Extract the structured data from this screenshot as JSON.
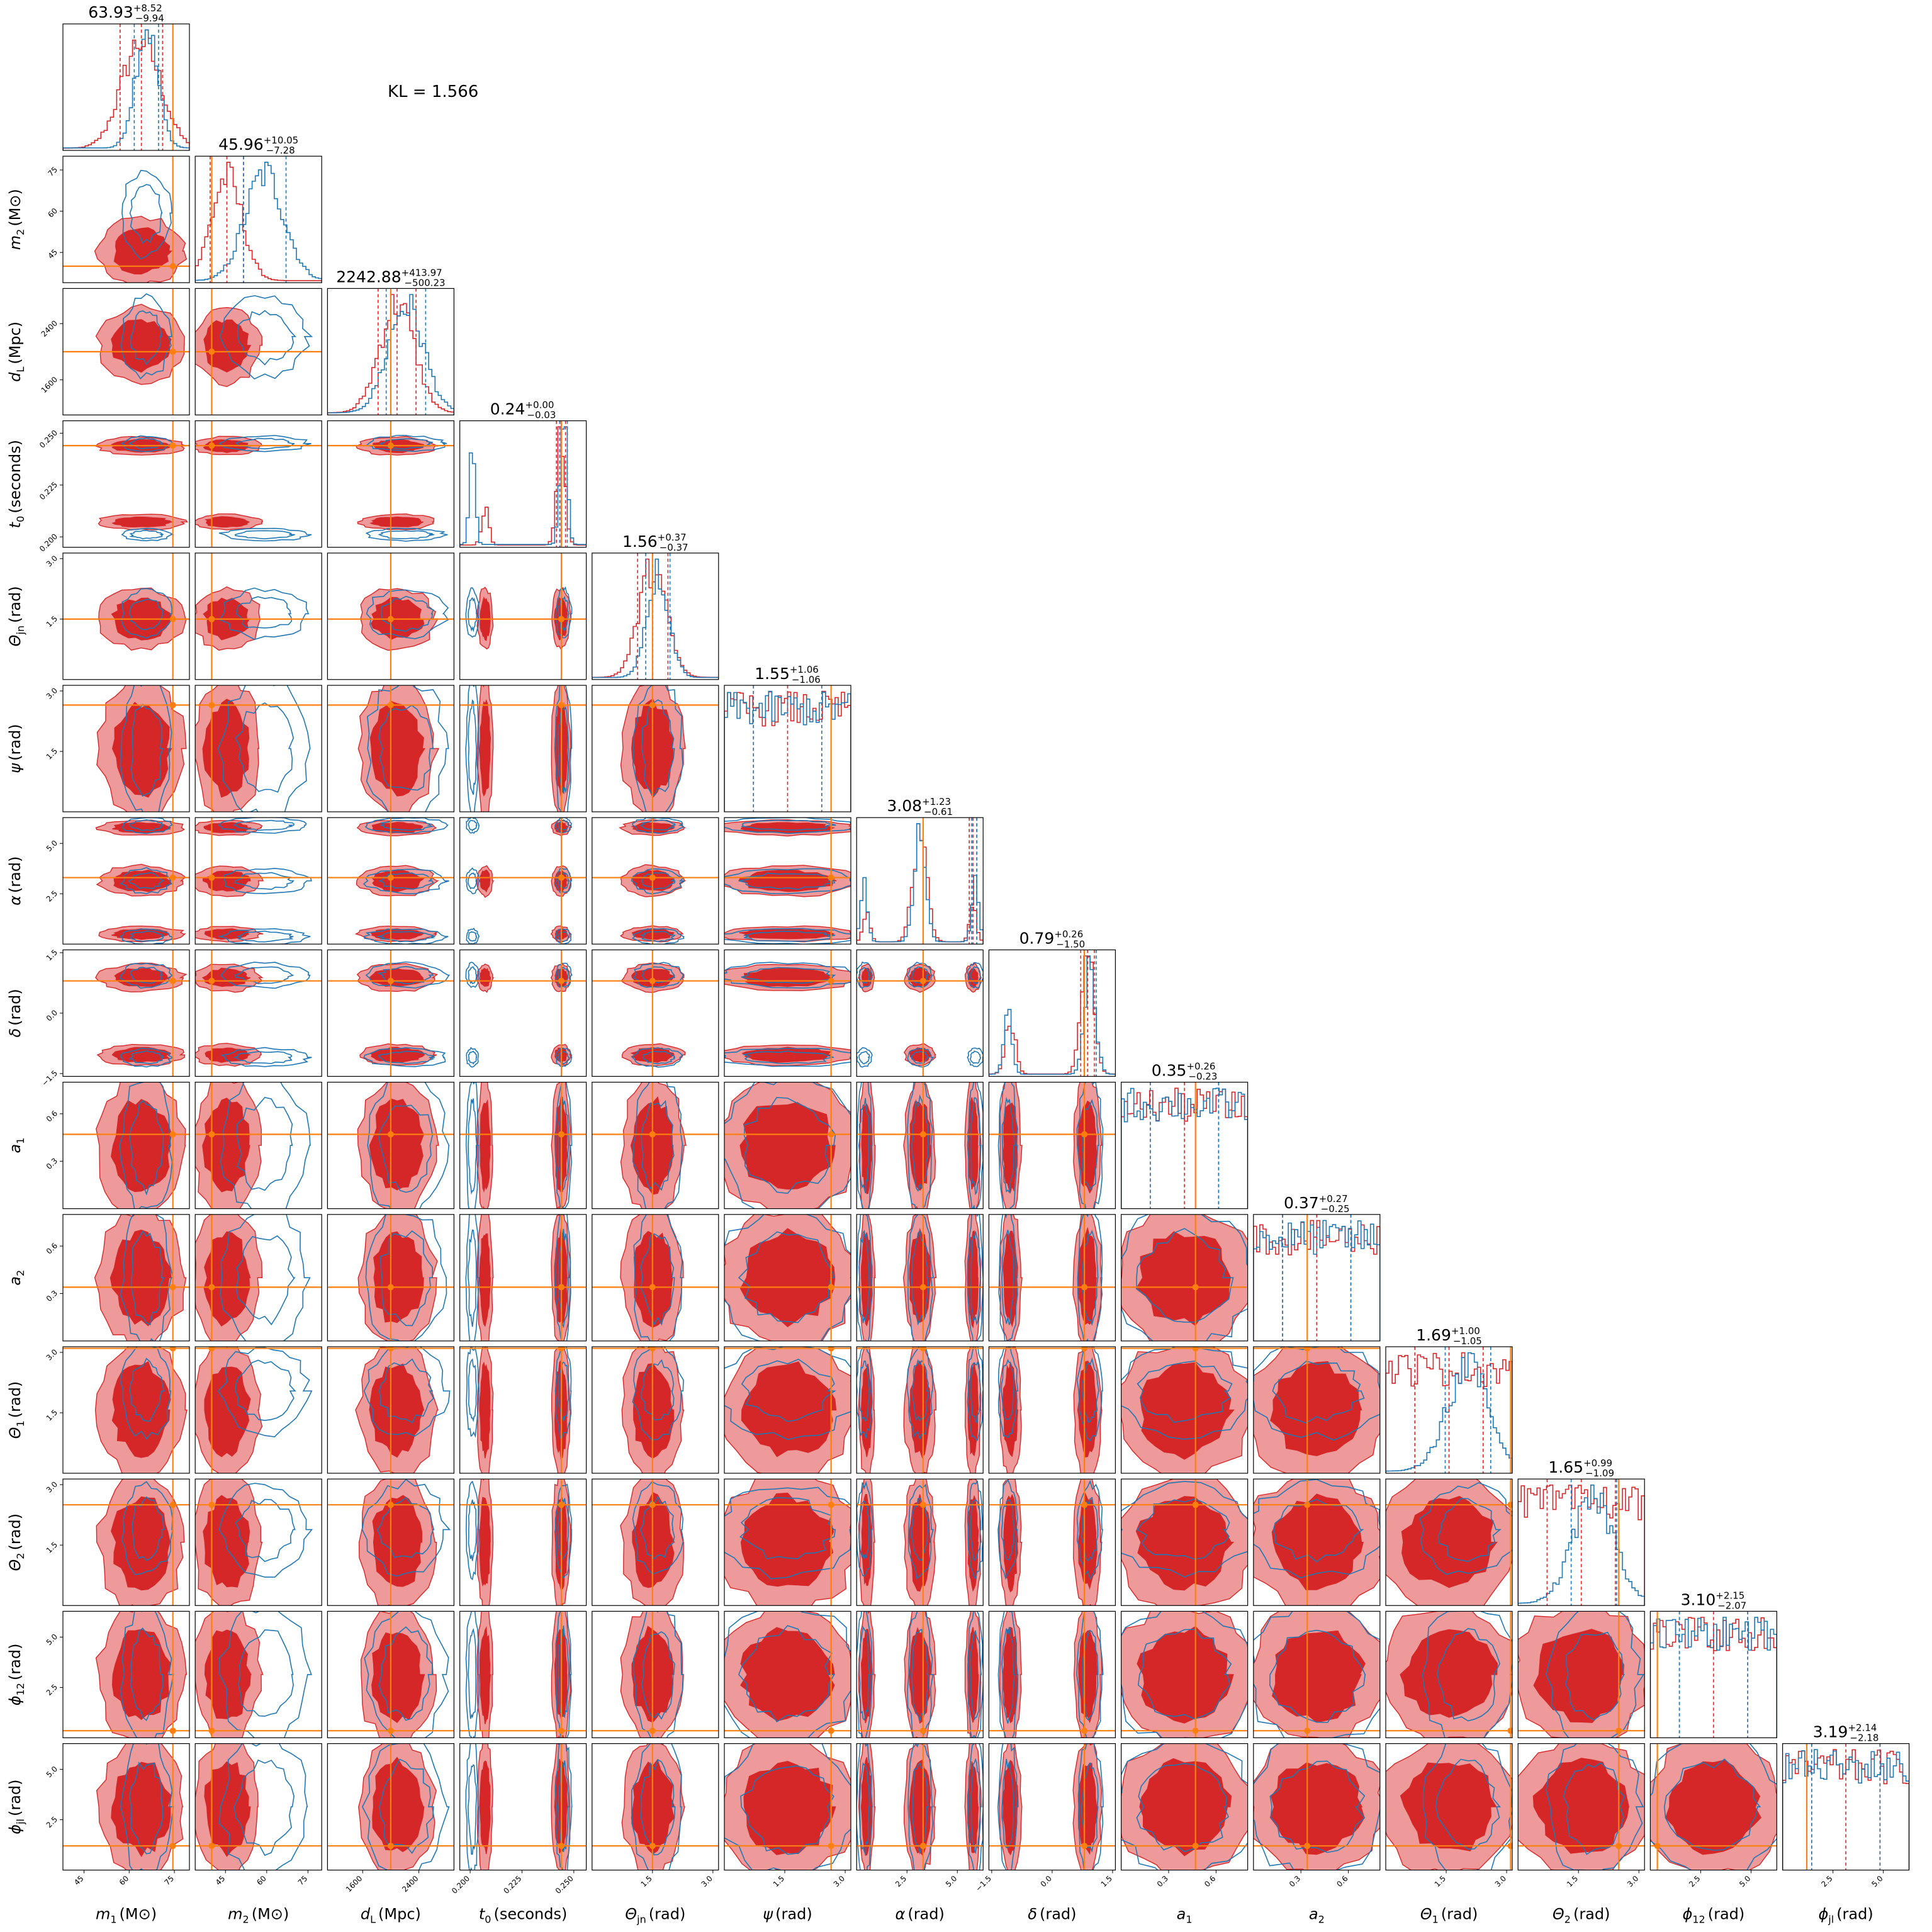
{
  "chart_data": {
    "type": "corner",
    "annotation": "KL = 1.566",
    "colors": {
      "red": "#d62728",
      "red_light": "#ee9a9b",
      "blue": "#1f77b4",
      "truth": "#ff7f0e"
    },
    "parameters": [
      {
        "label": "m1 (Msun)",
        "label_main": "m",
        "label_sub": "1",
        "label_unit": "(M⊙)",
        "title_value": "63.93",
        "title_plus": "+8.52",
        "title_minus": "−9.94",
        "ticks": [
          "45",
          "60",
          "75"
        ],
        "truth": 74.5
      },
      {
        "label": "m2 (Msun)",
        "label_main": "m",
        "label_sub": "2",
        "label_unit": "(M⊙)",
        "title_value": "45.96",
        "title_plus": "+10.05",
        "title_minus": "−7.28",
        "ticks": [
          "45",
          "60",
          "75"
        ],
        "truth": 40.0
      },
      {
        "label": "dL (Mpc)",
        "label_main": "d",
        "label_sub": "L",
        "label_unit": "(Mpc)",
        "title_value": "2242.88",
        "title_plus": "+413.97",
        "title_minus": "−500.23",
        "ticks": [
          "1600",
          "2400"
        ],
        "truth": 2000
      },
      {
        "label": "t0 (seconds)",
        "label_main": "t",
        "label_sub": "0",
        "label_unit": "(seconds)",
        "title_value": "0.24",
        "title_plus": "+0.00",
        "title_minus": "−0.03",
        "ticks": [
          "0.200",
          "0.225",
          "0.250"
        ],
        "truth": 0.244
      },
      {
        "label": "Theta_jn (rad)",
        "label_main": "Θ",
        "label_sub": "jn",
        "label_unit": "(rad)",
        "title_value": "1.56",
        "title_plus": "+0.37",
        "title_minus": "−0.37",
        "ticks": [
          "1.5",
          "3.0"
        ],
        "truth": 1.5
      },
      {
        "label": "psi (rad)",
        "label_main": "ψ",
        "label_sub": "",
        "label_unit": "(rad)",
        "title_value": "1.55",
        "title_plus": "+1.06",
        "title_minus": "−1.06",
        "ticks": [
          "1.5",
          "3.0"
        ],
        "truth": 2.65
      },
      {
        "label": "alpha (rad)",
        "label_main": "α",
        "label_sub": "",
        "label_unit": "(rad)",
        "title_value": "3.08",
        "title_plus": "+1.23",
        "title_minus": "−0.61",
        "ticks": [
          "2.5",
          "5.0"
        ],
        "truth": 3.3
      },
      {
        "label": "delta (rad)",
        "label_main": "δ",
        "label_sub": "",
        "label_unit": "(rad)",
        "title_value": "0.79",
        "title_plus": "+0.26",
        "title_minus": "−1.50",
        "ticks": [
          "−1.5",
          "0.0",
          "1.5"
        ],
        "truth": 0.8
      },
      {
        "label": "a1",
        "label_main": "a",
        "label_sub": "1",
        "label_unit": "",
        "title_value": "0.35",
        "title_plus": "+0.26",
        "title_minus": "−0.23",
        "ticks": [
          "0.3",
          "0.6"
        ],
        "truth": 0.47
      },
      {
        "label": "a2",
        "label_main": "a",
        "label_sub": "2",
        "label_unit": "",
        "title_value": "0.37",
        "title_plus": "+0.27",
        "title_minus": "−0.25",
        "ticks": [
          "0.3",
          "0.6"
        ],
        "truth": 0.34
      },
      {
        "label": "Theta1 (rad)",
        "label_main": "Θ",
        "label_sub": "1",
        "label_unit": "(rad)",
        "title_value": "1.69",
        "title_plus": "+1.00",
        "title_minus": "−1.05",
        "ticks": [
          "1.5",
          "3.0"
        ],
        "truth": 3.1
      },
      {
        "label": "Theta2 (rad)",
        "label_main": "Θ",
        "label_sub": "2",
        "label_unit": "(rad)",
        "title_value": "1.65",
        "title_plus": "+0.99",
        "title_minus": "−1.09",
        "ticks": [
          "1.5",
          "3.0"
        ],
        "truth": 2.5
      },
      {
        "label": "phi12 (rad)",
        "label_main": "ϕ",
        "label_sub": "12",
        "label_unit": "(rad)",
        "title_value": "3.10",
        "title_plus": "+2.15",
        "title_minus": "−2.07",
        "ticks": [
          "2.5",
          "5.0"
        ],
        "truth": 0.35
      },
      {
        "label": "phi_jl (rad)",
        "label_main": "ϕ",
        "label_sub": "jl",
        "label_unit": "(rad)",
        "title_value": "3.19",
        "title_plus": "+2.14",
        "title_minus": "−2.18",
        "ticks": [
          "2.5",
          "5.0"
        ],
        "truth": 1.2
      }
    ]
  }
}
